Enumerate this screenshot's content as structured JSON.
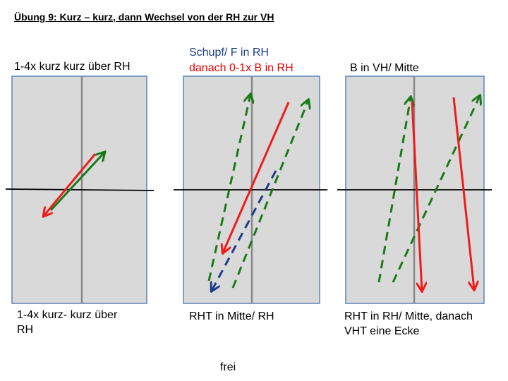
{
  "title": "Übung 9: Kurz – kurz, dann Wechsel von der RH zur VH",
  "panels": [
    {
      "top_label": "1-4x kurz kurz über RH",
      "bottom_label_line1": "1-4x kurz- kurz über",
      "bottom_label_line2": "RH"
    },
    {
      "top_label_line1": "Schupf/ F in RH",
      "top_label_line2": "danach 0-1x B in RH",
      "bottom_label": "RHT in Mitte/ RH"
    },
    {
      "top_label": "B in VH/ Mitte",
      "bottom_label_line1": "RHT in RH/ Mitte, danach",
      "bottom_label_line2": "VHT eine Ecke"
    }
  ],
  "footer": "frei",
  "colors": {
    "table": "#d9d9d9",
    "table_border": "#5b84bc",
    "red_arrow": "#ee1c1c",
    "green_arrow": "#1a7a1a",
    "blue_arrow": "#1f3c88"
  }
}
